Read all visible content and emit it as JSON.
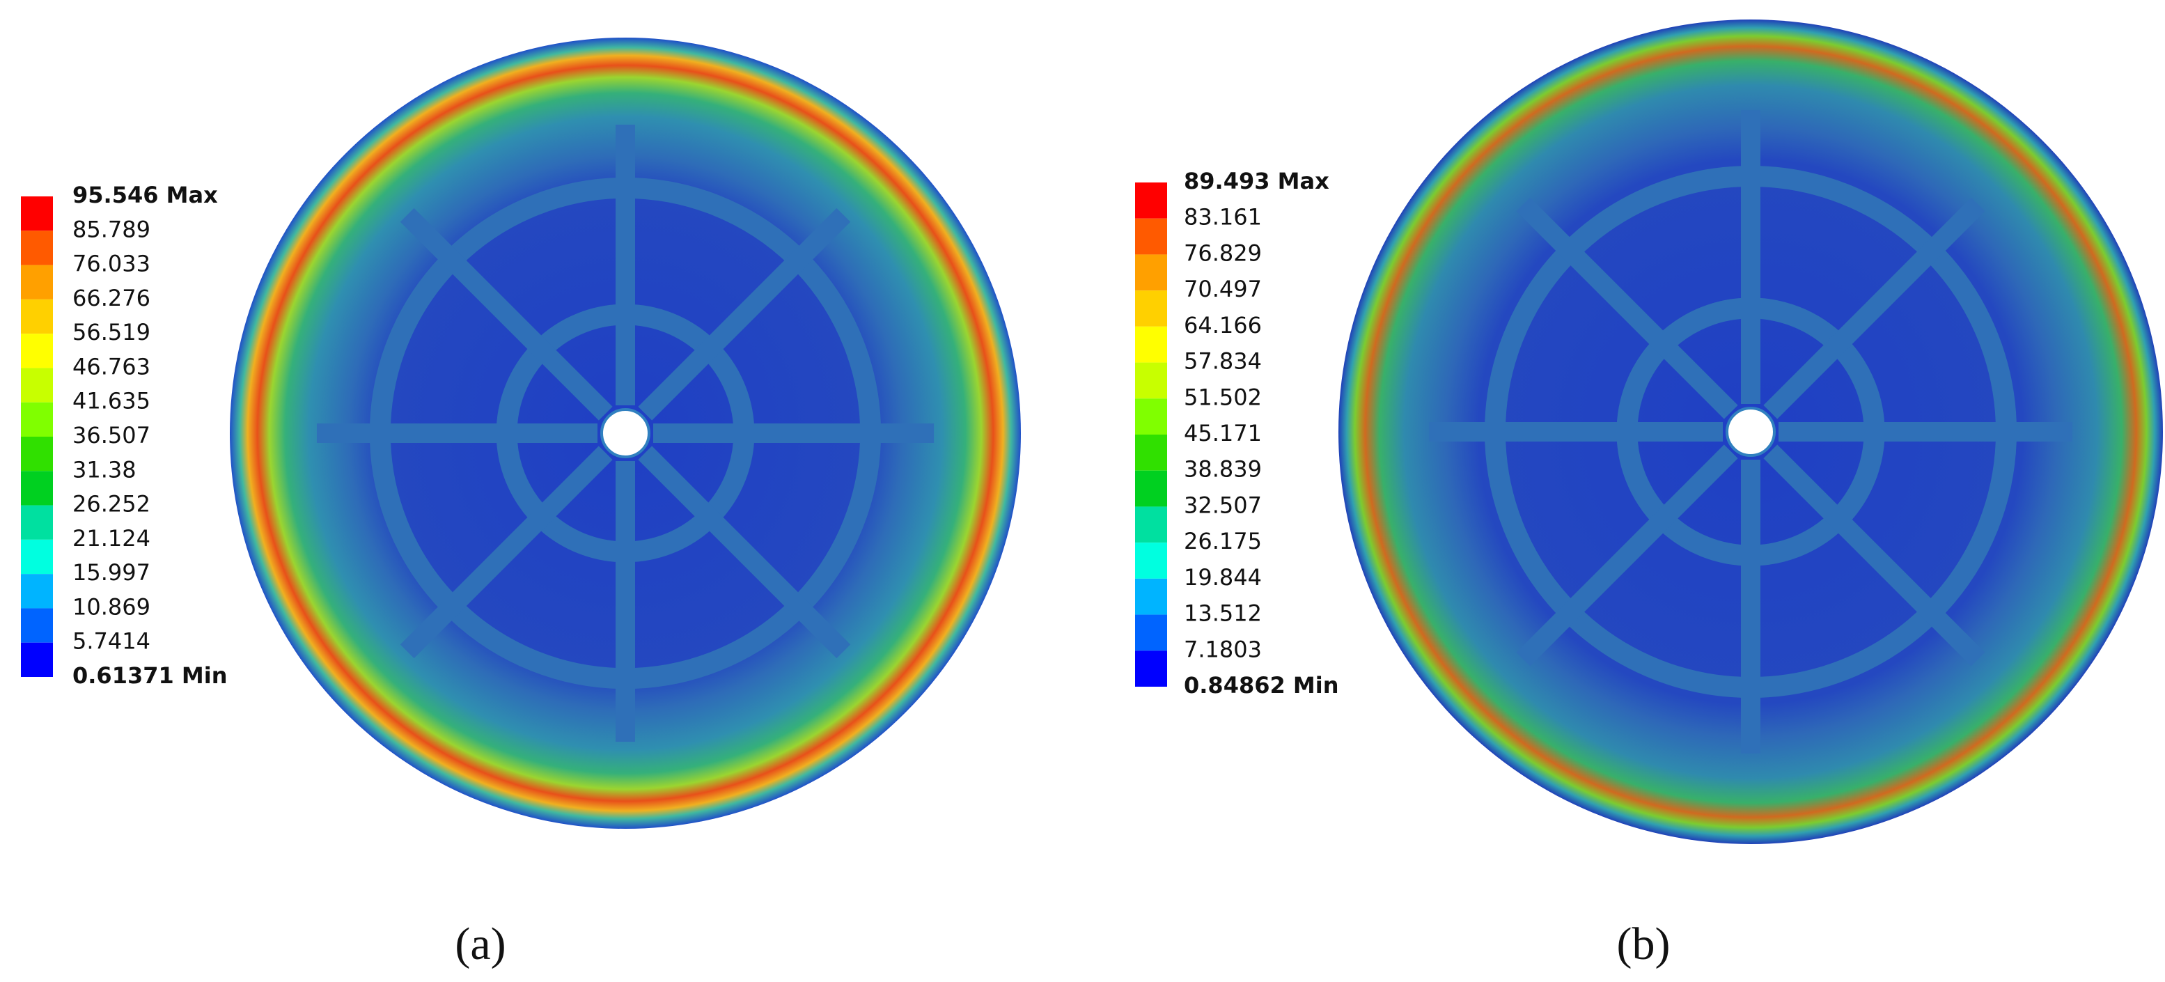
{
  "panels": [
    {
      "label": "(a)",
      "legend": [
        "95.546 Max",
        "85.789",
        "76.033",
        "66.276",
        "56.519",
        "46.763",
        "41.635",
        "36.507",
        "31.38",
        "26.252",
        "21.124",
        "15.997",
        "10.869",
        "5.7414",
        "0.61371 Min"
      ]
    },
    {
      "label": "(b)",
      "legend": [
        "89.493 Max",
        "83.161",
        "76.829",
        "70.497",
        "64.166",
        "57.834",
        "51.502",
        "45.171",
        "38.839",
        "32.507",
        "26.175",
        "19.844",
        "13.512",
        "7.1803",
        "0.84862 Min"
      ]
    }
  ]
}
